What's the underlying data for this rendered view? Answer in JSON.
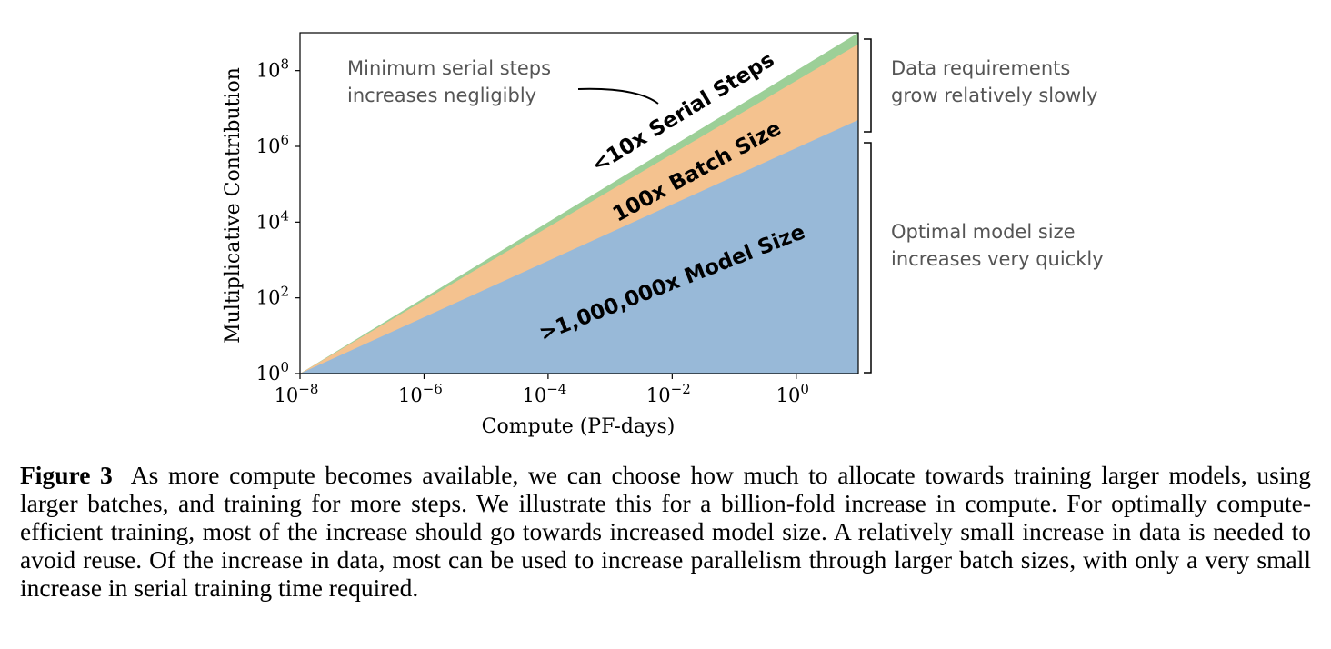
{
  "chart_data": {
    "type": "area",
    "x_scale": "log",
    "y_scale": "log",
    "xlim": [
      1e-08,
      10
    ],
    "ylim": [
      1,
      1000000000.0
    ],
    "xlabel": "Compute (PF-days)",
    "ylabel": "Multiplicative Contribution",
    "x_ticks": [
      {
        "base": "10",
        "exp": "−8"
      },
      {
        "base": "10",
        "exp": "−6"
      },
      {
        "base": "10",
        "exp": "−4"
      },
      {
        "base": "10",
        "exp": "−2"
      },
      {
        "base": "10",
        "exp": "0"
      }
    ],
    "y_ticks": [
      {
        "base": "10",
        "exp": "0"
      },
      {
        "base": "10",
        "exp": "2"
      },
      {
        "base": "10",
        "exp": "4"
      },
      {
        "base": "10",
        "exp": "6"
      },
      {
        "base": "10",
        "exp": "8"
      }
    ],
    "x": [
      1e-08,
      10
    ],
    "series": [
      {
        "name": ">1,000,000x Model Size",
        "color": "#98b9d8",
        "top": [
          1,
          5000000.0
        ]
      },
      {
        "name": "100x Batch Size",
        "color": "#f4c28f",
        "top": [
          1,
          500000000.0
        ]
      },
      {
        "name": "<10x Serial Steps",
        "color": "#9ccf97",
        "top": [
          1,
          1000000000.0
        ]
      }
    ],
    "grid": false,
    "annotations": {
      "serial_note": [
        "Minimum serial steps",
        "increases negligibly"
      ],
      "data_note": [
        "Data requirements",
        "grow relatively slowly"
      ],
      "model_note": [
        "Optimal model size",
        "increases very quickly"
      ]
    }
  },
  "caption": {
    "label": "Figure 3",
    "text": "As more compute becomes available, we can choose how much to allocate towards training larger models, using larger batches, and training for more steps. We illustrate this for a billion-fold increase in compute. For optimally compute-efficient training, most of the increase should go towards increased model size. A relatively small increase in data is needed to avoid reuse. Of the increase in data, most can be used to increase parallelism through larger batch sizes, with only a very small increase in serial training time required."
  }
}
